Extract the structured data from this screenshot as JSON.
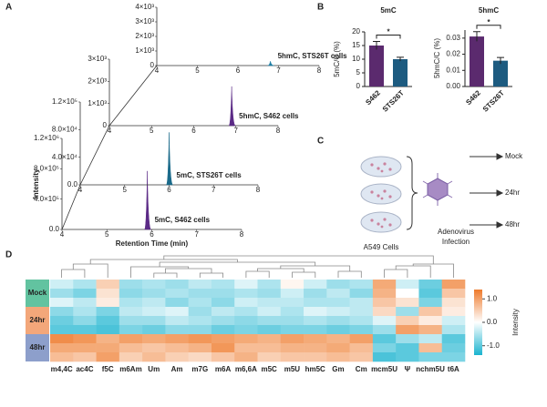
{
  "panels": [
    "A",
    "B",
    "C",
    "D"
  ],
  "diagram": {
    "cells_label": "A549 Cells",
    "virus_label": [
      "Adenovirus",
      "Infection"
    ],
    "outcomes": [
      "Mock",
      "24hr",
      "48hr"
    ]
  },
  "chart_data": [
    {
      "type": "chromatogram",
      "label": "5mC, S462 cells",
      "color": "#5b2a86",
      "x": [
        5.9
      ],
      "values": [
        770000
      ],
      "xlim": [
        4,
        8
      ],
      "xticks": [
        4,
        5,
        6,
        7,
        8
      ],
      "ylim": [
        0,
        1200000
      ],
      "yticks": [
        {
          "value": 0,
          "label": "0.0"
        },
        {
          "value": 400000,
          "label": "4.0×10⁵"
        },
        {
          "value": 800000,
          "label": "8.0×10⁵"
        },
        {
          "value": 1200000,
          "label": "1.2×10⁶"
        }
      ],
      "xlabel": "Retention Time (min)",
      "ylabel": "Intensity"
    },
    {
      "type": "chromatogram",
      "label": "5mC, STS26T cells",
      "color": "#1a6a8a",
      "x": [
        6.0
      ],
      "values": [
        76000
      ],
      "xlim": [
        4,
        8
      ],
      "xticks": [
        4,
        5,
        6,
        7,
        8
      ],
      "ylim": [
        0,
        120000
      ],
      "yticks": [
        {
          "value": 0,
          "label": "0.0"
        },
        {
          "value": 40000,
          "label": "4.0×10⁴"
        },
        {
          "value": 80000,
          "label": "8.0×10⁴"
        },
        {
          "value": 120000,
          "label": "1.2×10⁵"
        }
      ]
    },
    {
      "type": "chromatogram",
      "label": "5hmC, S462 cells",
      "color": "#5b2a86",
      "x": [
        6.9
      ],
      "values": [
        1770
      ],
      "xlim": [
        4,
        8
      ],
      "xticks": [
        4,
        5,
        6,
        7,
        8
      ],
      "ylim": [
        0,
        3000
      ],
      "yticks": [
        0,
        {
          "value": 1000,
          "label": "1×10³"
        },
        {
          "value": 2000,
          "label": "2×10³"
        },
        {
          "value": 3000,
          "label": "3×10³"
        }
      ]
    },
    {
      "type": "chromatogram",
      "label": "5hmC, STS26T cells",
      "color": "#1f7fa5",
      "x": [
        6.8
      ],
      "values": [
        300
      ],
      "xlim": [
        4,
        8
      ],
      "xticks": [
        4,
        5,
        6,
        7,
        8
      ],
      "ylim": [
        0,
        4000
      ],
      "yticks": [
        0,
        {
          "value": 1000,
          "label": "1×10³"
        },
        {
          "value": 2000,
          "label": "2×10³"
        },
        {
          "value": 3000,
          "label": "3×10³"
        },
        {
          "value": 4000,
          "label": "4×10³"
        }
      ]
    },
    {
      "type": "bar",
      "title": "5mC",
      "ylabel": "5mC/C (%)",
      "categories": [
        "S462",
        "STS26T"
      ],
      "values": [
        15,
        10
      ],
      "errors": [
        1.5,
        0.7
      ],
      "colors": [
        "#5b2a6e",
        "#1d5b80"
      ],
      "ylim": [
        0,
        20
      ],
      "yticks": [
        0,
        5,
        10,
        15,
        20
      ],
      "annotation": "*"
    },
    {
      "type": "bar",
      "title": "5hmC",
      "ylabel": "5hmC/C (%)",
      "categories": [
        "S462",
        "STS26T"
      ],
      "values": [
        0.031,
        0.016
      ],
      "errors": [
        0.003,
        0.002
      ],
      "colors": [
        "#5b2a6e",
        "#1d5b80"
      ],
      "ylim": [
        0,
        0.035
      ],
      "yticks": [
        {
          "value": 0,
          "label": "0.00"
        },
        {
          "value": 0.01,
          "label": "0.01"
        },
        0.02,
        0.03
      ],
      "annotation": "*"
    },
    {
      "type": "heatmap",
      "categories": [
        "m4,4C",
        "ac4C",
        "f5C",
        "m6Am",
        "Um",
        "Am",
        "m7G",
        "m6A",
        "m6,6A",
        "m5C",
        "m5U",
        "hm5C",
        "Gm",
        "Cm",
        "mcm5U",
        "Ψ",
        "nchm5U",
        "t6A"
      ],
      "row_groups": [
        {
          "label": "Mock",
          "color": "#62c3a0",
          "rows": 3
        },
        {
          "label": "24hr",
          "color": "#f3a77a",
          "rows": 3
        },
        {
          "label": "48hr",
          "color": "#8d9fcb",
          "rows": 3
        }
      ],
      "values": [
        [
          -0.3,
          -0.5,
          0.5,
          -0.6,
          -0.5,
          -0.6,
          -0.4,
          -0.5,
          -0.2,
          -0.5,
          0.1,
          -0.3,
          -0.6,
          -0.5,
          0.9,
          -0.3,
          -0.9,
          1.0
        ],
        [
          -0.6,
          -0.8,
          0.3,
          -0.7,
          -0.6,
          -0.5,
          -0.6,
          -0.6,
          -0.5,
          -0.6,
          -0.3,
          -0.6,
          -0.4,
          -0.7,
          0.8,
          0.0,
          -1.0,
          0.6
        ],
        [
          -0.2,
          -0.4,
          0.2,
          -0.5,
          -0.4,
          -0.7,
          -0.5,
          -0.7,
          -0.3,
          -0.4,
          -0.4,
          -0.5,
          -0.5,
          -0.4,
          0.6,
          0.3,
          -0.8,
          0.3
        ],
        [
          -0.7,
          -0.5,
          -0.8,
          -0.4,
          -0.3,
          -0.2,
          -0.6,
          -0.4,
          -0.5,
          -0.3,
          -0.5,
          -0.2,
          -0.3,
          -0.4,
          0.4,
          -0.6,
          0.6,
          0.2
        ],
        [
          -0.9,
          -0.7,
          -1.0,
          -0.6,
          -0.6,
          -0.4,
          -0.5,
          -0.6,
          -0.7,
          -0.6,
          -0.6,
          -0.5,
          -0.6,
          -0.5,
          -0.2,
          0.5,
          0.2,
          -0.3
        ],
        [
          -1.0,
          -1.0,
          -1.1,
          -0.8,
          -0.9,
          -0.7,
          -0.7,
          -0.9,
          -0.8,
          -0.9,
          -0.8,
          -0.8,
          -0.9,
          -0.8,
          -0.6,
          1.0,
          0.8,
          -0.5
        ],
        [
          1.2,
          1.1,
          0.8,
          1.0,
          0.9,
          1.0,
          1.1,
          1.0,
          0.9,
          0.8,
          1.0,
          0.9,
          0.8,
          1.0,
          -1.0,
          -0.6,
          -0.4,
          -1.0
        ],
        [
          0.9,
          0.9,
          0.9,
          0.7,
          0.6,
          0.7,
          0.8,
          1.1,
          0.7,
          0.7,
          0.8,
          0.8,
          0.9,
          0.7,
          -0.8,
          -1.0,
          0.7,
          -0.9
        ],
        [
          0.7,
          0.6,
          1.0,
          0.5,
          0.7,
          0.5,
          0.4,
          0.6,
          0.8,
          0.5,
          0.6,
          0.6,
          0.7,
          0.6,
          -1.1,
          -1.0,
          -0.8,
          -0.8
        ]
      ],
      "zlim": [
        -1.4,
        1.4
      ],
      "colors": [
        "#1ab3cf",
        "#ffffff",
        "#ee7a2c"
      ],
      "zticks": [
        {
          "value": 1,
          "label": "1.0"
        },
        {
          "value": 0,
          "label": "0.0"
        },
        {
          "value": -1,
          "label": "-1.0"
        }
      ],
      "colorbar_label": "Intensity"
    }
  ]
}
